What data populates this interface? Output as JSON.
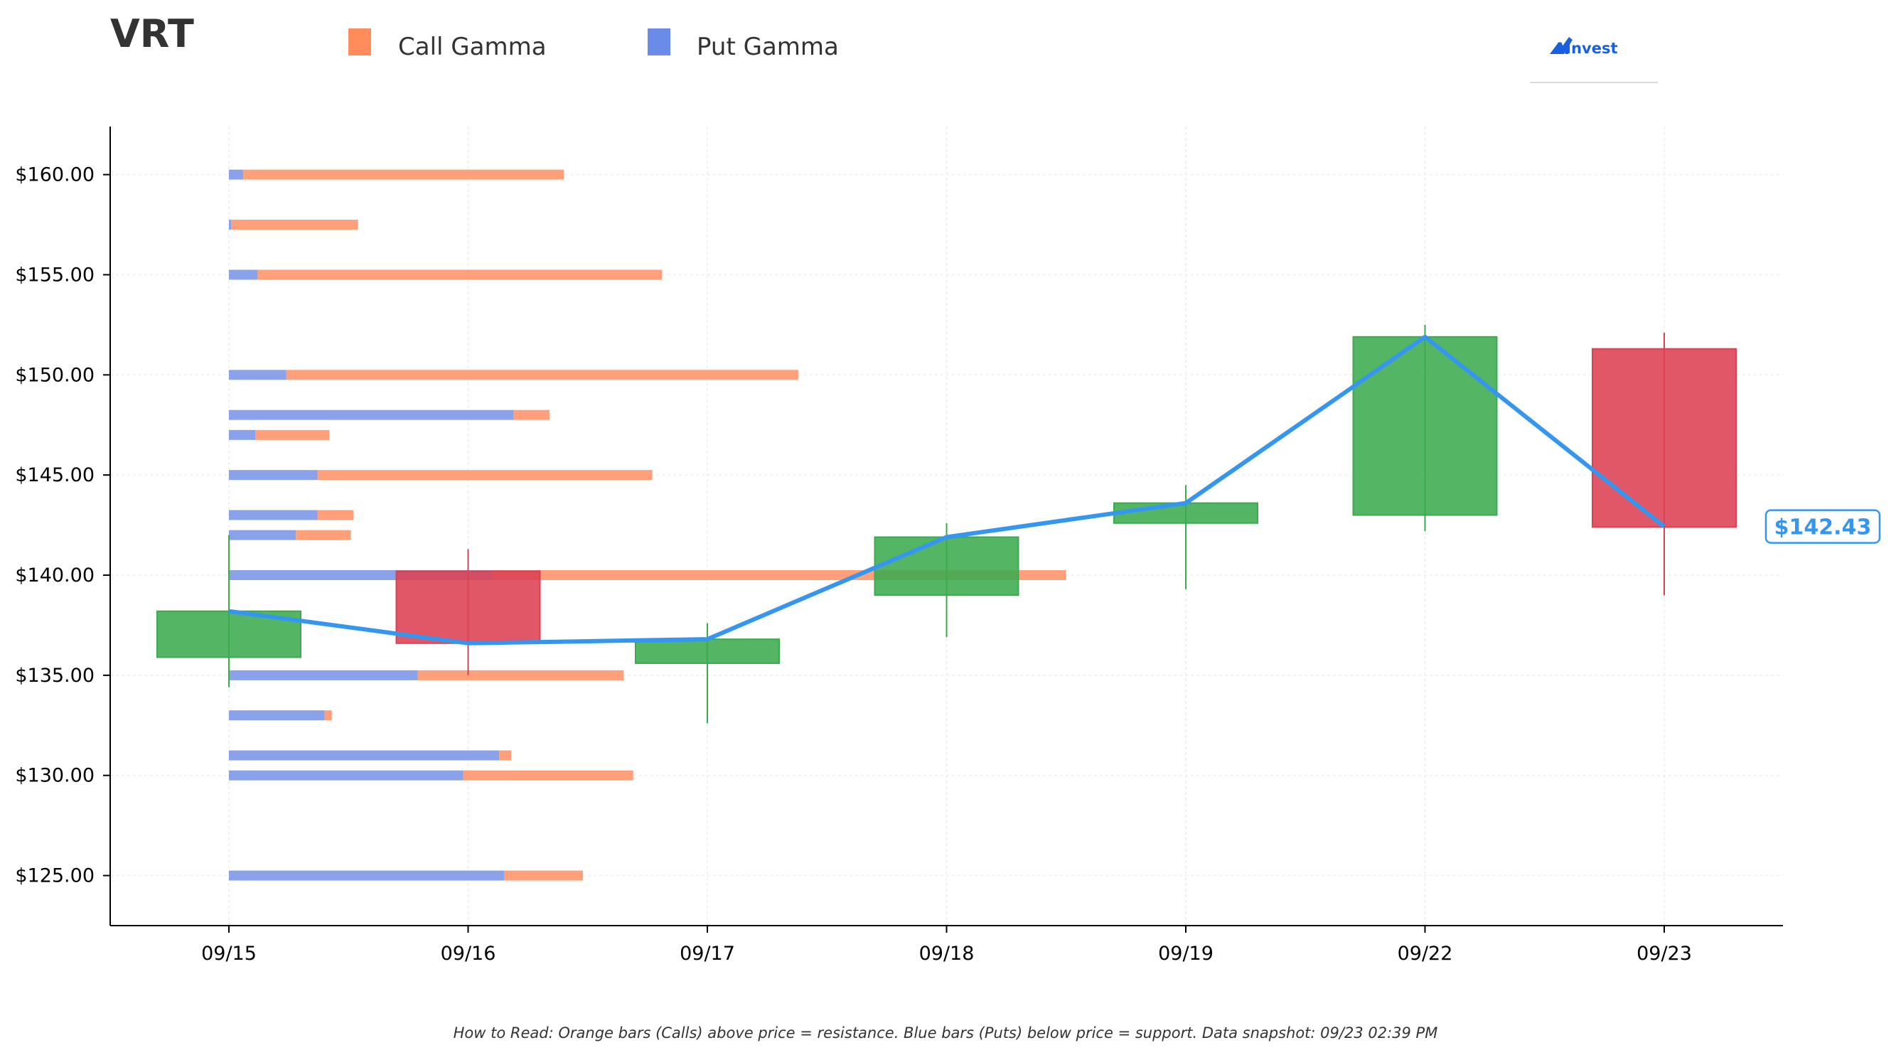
{
  "ticker": "VRT",
  "brand": {
    "name": "AInvest",
    "color": "#1a5fe0"
  },
  "legend": [
    {
      "label": "Call Gamma",
      "color": "#ff8c5a"
    },
    {
      "label": "Put Gamma",
      "color": "#6a8be8"
    }
  ],
  "colors": {
    "call": "#ffa07a",
    "put": "#8aa2ea",
    "up": "#3cab4f",
    "down": "#dc4153",
    "price_line": "#3596f0",
    "axis": "#000000",
    "grid": "#eeeeee"
  },
  "footnote": "How to Read: Orange bars (Calls) above price = resistance. Blue bars (Puts) below price = support. Data snapshot: 09/23 02:39 PM",
  "chart_data": {
    "type": "bar",
    "subtype": "candlestick with horizontal gamma-exposure bars",
    "x_categories": [
      "09/15",
      "09/16",
      "09/17",
      "09/18",
      "09/19",
      "09/22",
      "09/23"
    ],
    "ylim": [
      122.5,
      162.4
    ],
    "y_ticks": [
      125,
      130,
      135,
      140,
      145,
      150,
      155,
      160
    ],
    "y_tick_labels": [
      "$125.00",
      "$130.00",
      "$135.00",
      "$140.00",
      "$145.00",
      "$150.00",
      "$155.00",
      "$160.00"
    ],
    "grid": true,
    "legend_position": "top",
    "candles": [
      {
        "date": "09/15",
        "open": 135.9,
        "close": 138.2,
        "high": 142.0,
        "low": 134.4
      },
      {
        "date": "09/16",
        "open": 140.2,
        "close": 136.6,
        "high": 141.3,
        "low": 135.0
      },
      {
        "date": "09/17",
        "open": 135.6,
        "close": 136.8,
        "high": 137.6,
        "low": 132.6
      },
      {
        "date": "09/18",
        "open": 139.0,
        "close": 141.9,
        "high": 142.6,
        "low": 136.9
      },
      {
        "date": "09/19",
        "open": 142.6,
        "close": 143.6,
        "high": 144.5,
        "low": 139.3
      },
      {
        "date": "09/22",
        "open": 143.0,
        "close": 151.9,
        "high": 152.5,
        "low": 142.2
      },
      {
        "date": "09/23",
        "open": 151.3,
        "close": 142.4,
        "high": 152.1,
        "low": 139.0
      }
    ],
    "price_line": [
      138.2,
      136.6,
      136.8,
      141.9,
      143.6,
      151.9,
      142.43
    ],
    "current_price_label": "$142.43",
    "gamma_scale_max": 3.5,
    "gamma_bars": [
      {
        "strike": 160,
        "put": 0.06,
        "call": 1.34
      },
      {
        "strike": 157.5,
        "put": 0.01,
        "call": 0.53
      },
      {
        "strike": 155,
        "put": 0.12,
        "call": 1.69
      },
      {
        "strike": 150,
        "put": 0.24,
        "call": 2.14
      },
      {
        "strike": 148,
        "put": 1.19,
        "call": 0.15
      },
      {
        "strike": 147,
        "put": 0.11,
        "call": 0.31
      },
      {
        "strike": 145,
        "put": 0.37,
        "call": 1.4
      },
      {
        "strike": 143,
        "put": 0.37,
        "call": 0.15
      },
      {
        "strike": 142,
        "put": 0.28,
        "call": 0.23
      },
      {
        "strike": 140,
        "put": 1.1,
        "call": 2.4
      },
      {
        "strike": 135,
        "put": 0.79,
        "call": 0.86
      },
      {
        "strike": 133,
        "put": 0.4,
        "call": 0.03
      },
      {
        "strike": 131,
        "put": 1.13,
        "call": 0.05
      },
      {
        "strike": 130,
        "put": 0.98,
        "call": 0.71
      },
      {
        "strike": 125,
        "put": 1.15,
        "call": 0.33
      }
    ]
  }
}
